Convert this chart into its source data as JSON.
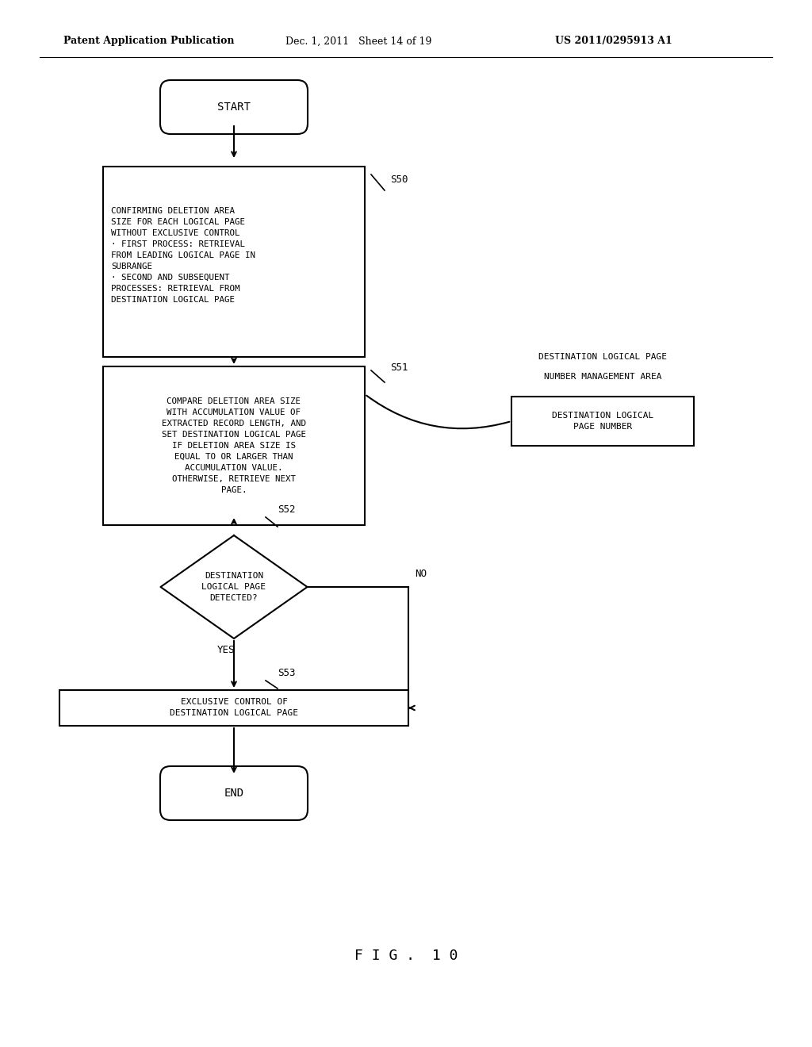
{
  "header_left": "Patent Application Publication",
  "header_center": "Dec. 1, 2011   Sheet 14 of 19",
  "header_right": "US 2011/0295913 A1",
  "figure_label": "F I G .  1 0",
  "start_text": "START",
  "end_text": "END",
  "s50_label": "S50",
  "s51_label": "S51",
  "s52_label": "S52",
  "s53_label": "S53",
  "box1_lines": [
    "CONFIRMING DELETION AREA",
    "SIZE FOR EACH LOGICAL PAGE",
    "WITHOUT EXCLUSIVE CONTROL",
    "· FIRST PROCESS: RETRIEVAL",
    "FROM LEADING LOGICAL PAGE IN",
    "SUBRANGE",
    "· SECOND AND SUBSEQUENT",
    "PROCESSES: RETRIEVAL FROM",
    "DESTINATION LOGICAL PAGE"
  ],
  "box2_lines": [
    "COMPARE DELETION AREA SIZE",
    "WITH ACCUMULATION VALUE OF",
    "EXTRACTED RECORD LENGTH, AND",
    "SET DESTINATION LOGICAL PAGE",
    "IF DELETION AREA SIZE IS",
    "EQUAL TO OR LARGER THAN",
    "ACCUMULATION VALUE.",
    "OTHERWISE, RETRIEVE NEXT",
    "PAGE."
  ],
  "diamond_lines": [
    "DESTINATION",
    "LOGICAL PAGE",
    "DETECTED?"
  ],
  "box3_lines": [
    "EXCLUSIVE CONTROL OF",
    "DESTINATION LOGICAL PAGE"
  ],
  "side_label1": "DESTINATION LOGICAL PAGE",
  "side_label2": "NUMBER MANAGEMENT AREA",
  "side_box_lines": [
    "DESTINATION LOGICAL",
    "PAGE NUMBER"
  ],
  "no_label": "NO",
  "yes_label": "YES",
  "bg_color": "#ffffff",
  "text_color": "#000000",
  "line_color": "#000000"
}
